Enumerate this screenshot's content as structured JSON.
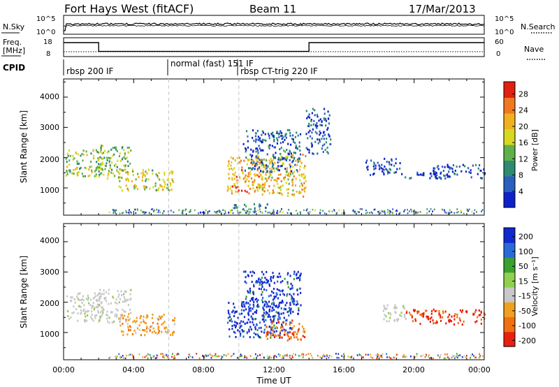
{
  "header": {
    "station": "Fort Hays West (fitACF)",
    "beam": "Beam 11",
    "date": "17/Mar/2013"
  },
  "noise_panel": {
    "left_label": "N.Sky",
    "left_ticks": [
      "10^5",
      "10^0"
    ],
    "right_ticks": [
      "10^5",
      "10^0"
    ],
    "right_label": "N.Search"
  },
  "freq_panel": {
    "left_label_1": "Freq.",
    "left_label_2": "[MHz]",
    "left_ticks": [
      "18",
      "8"
    ],
    "right_ticks": [
      "60",
      "0"
    ],
    "right_label": "Nave",
    "freq_steps": [
      {
        "t0": 0.0,
        "t1": 2.0,
        "mhz": 16.5
      },
      {
        "t0": 2.0,
        "t1": 14.0,
        "mhz": 10.2
      },
      {
        "t0": 14.0,
        "t1": 24.0,
        "mhz": 16.5
      }
    ],
    "nave_level": 12
  },
  "cpid": {
    "label": "CPID",
    "modes": [
      {
        "text": "rbsp 200 IF",
        "start": 0.0
      },
      {
        "text": "normal (fast) 151 IF",
        "start": 6.0
      },
      {
        "text": "rbsp CT-trig 220 IF",
        "start": 10.0
      }
    ]
  },
  "chart_data": [
    {
      "type": "heatmap",
      "parameter": "Power",
      "ylabel": "Slant Range [km]",
      "xlabel": "",
      "xlim": [
        0,
        24
      ],
      "ylim": [
        100,
        4600
      ],
      "yticks": [
        "1000",
        "2000",
        "3000",
        "4000"
      ],
      "colorbar": {
        "label": "Power [dB]",
        "ticks": [
          "4",
          "8",
          "12",
          "16",
          "20",
          "24",
          "28"
        ],
        "range": [
          0,
          31
        ],
        "colors": [
          "#1020c8",
          "#2a5fbf",
          "#2f8a73",
          "#5fb04a",
          "#d8d820",
          "#f0b020",
          "#f07820",
          "#e02010"
        ]
      },
      "echo_regions": [
        {
          "t0": 0.1,
          "t1": 2.2,
          "r0": 1350,
          "r1": 2250,
          "level": 15
        },
        {
          "t0": 1.8,
          "t1": 3.8,
          "r0": 1300,
          "r1": 2400,
          "level": 14
        },
        {
          "t0": 3.1,
          "t1": 6.3,
          "r0": 900,
          "r1": 1600,
          "level": 17
        },
        {
          "t0": 9.3,
          "t1": 11.5,
          "r0": 800,
          "r1": 2000,
          "level": 22
        },
        {
          "t0": 11.0,
          "t1": 13.8,
          "r0": 700,
          "r1": 2100,
          "level": 20
        },
        {
          "t0": 10.2,
          "t1": 13.5,
          "r0": 1500,
          "r1": 2900,
          "level": 6
        },
        {
          "t0": 13.8,
          "t1": 15.2,
          "r0": 2100,
          "r1": 3600,
          "level": 5
        },
        {
          "t0": 17.2,
          "t1": 19.2,
          "r0": 1400,
          "r1": 1950,
          "level": 4
        },
        {
          "t0": 19.2,
          "t1": 22.0,
          "r0": 1250,
          "r1": 1500,
          "level": 5
        },
        {
          "t0": 21.0,
          "t1": 24.0,
          "r0": 1300,
          "r1": 1750,
          "level": 4
        },
        {
          "t0": 9.5,
          "t1": 11.6,
          "r0": 300,
          "r1": 500,
          "level": 7
        }
      ]
    },
    {
      "type": "heatmap",
      "parameter": "Velocity",
      "ylabel": "Slant Range [km]",
      "xlabel": "Time UT",
      "xlim": [
        0,
        24
      ],
      "ylim": [
        100,
        4600
      ],
      "yticks": [
        "1000",
        "2000",
        "3000",
        "4000"
      ],
      "xticks": [
        "00:00",
        "04:00",
        "08:00",
        "12:00",
        "16:00",
        "20:00",
        "00:00"
      ],
      "colorbar": {
        "label": "Velocity [m s⁻¹]",
        "ticks": [
          "200",
          "100",
          "50",
          "15",
          "-15",
          "-50",
          "-100",
          "-200"
        ],
        "colors": [
          "#1028d0",
          "#2a6ad8",
          "#3aa030",
          "#90d050",
          "#c8c8c8",
          "#f0a020",
          "#f07010",
          "#e82010"
        ]
      },
      "echo_regions": [
        {
          "t0": 0.1,
          "t1": 2.2,
          "r0": 1350,
          "r1": 2300,
          "class": "ground"
        },
        {
          "t0": 1.8,
          "t1": 3.8,
          "r0": 1300,
          "r1": 2400,
          "class": "ground"
        },
        {
          "t0": 3.1,
          "t1": 6.3,
          "r0": 900,
          "r1": 1600,
          "class": "toward_slow"
        },
        {
          "t0": 9.3,
          "t1": 13.0,
          "r0": 800,
          "r1": 2000,
          "class": "away_fast"
        },
        {
          "t0": 11.5,
          "t1": 13.8,
          "r0": 700,
          "r1": 1400,
          "class": "toward_fast"
        },
        {
          "t0": 10.2,
          "t1": 13.5,
          "r0": 1600,
          "r1": 3000,
          "class": "away_fast"
        },
        {
          "t0": 18.0,
          "t1": 19.5,
          "r0": 1350,
          "r1": 1900,
          "class": "ground"
        },
        {
          "t0": 19.5,
          "t1": 24.0,
          "r0": 1250,
          "r1": 1750,
          "class": "toward_max"
        }
      ]
    }
  ]
}
